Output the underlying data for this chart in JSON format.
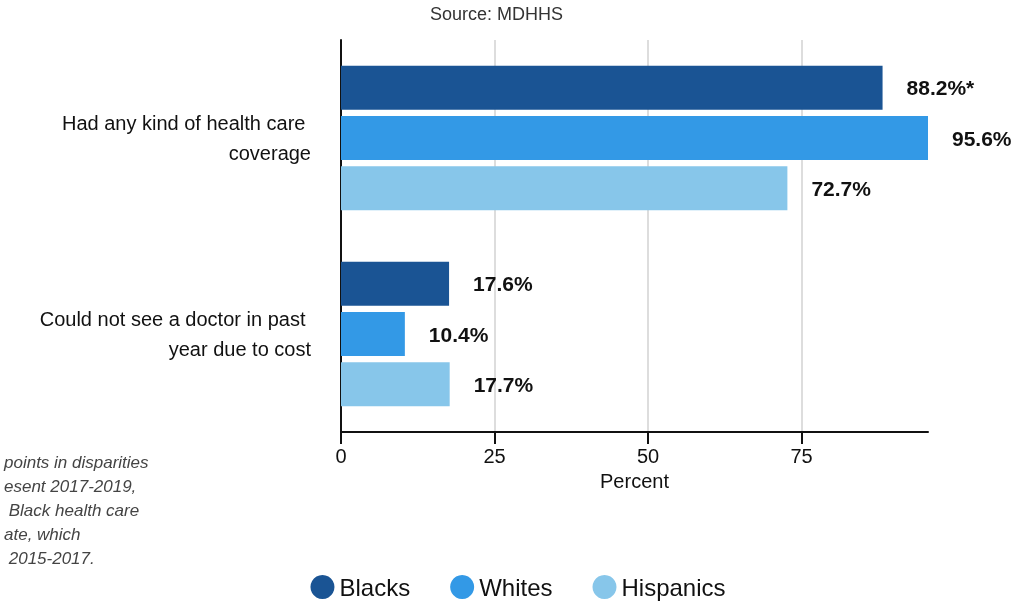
{
  "chart_data": {
    "type": "bar",
    "orientation": "horizontal",
    "subtitle": "Source: MDHHS",
    "xlabel": "Percent",
    "categories": [
      "Had any kind of health care coverage",
      "Could not see a doctor in past year due to cost"
    ],
    "series": [
      {
        "name": "Blacks",
        "color": "#1a5494",
        "values": [
          88.2,
          17.6
        ],
        "value_labels": [
          "88.2%*",
          "17.6%"
        ]
      },
      {
        "name": "Whites",
        "color": "#3399e6",
        "values": [
          95.6,
          10.4
        ],
        "value_labels": [
          "95.6%",
          "10.4%"
        ]
      },
      {
        "name": "Hispanics",
        "color": "#87c6ea",
        "values": [
          72.7,
          17.7
        ],
        "value_labels": [
          "72.7%",
          "17.7%"
        ]
      }
    ],
    "xlim": [
      0,
      95.6
    ],
    "xticks": [
      0,
      25,
      50,
      75
    ],
    "grid": "x",
    "legend": "bottom",
    "marker": "circle",
    "annotations": [
      "points in disparities\nesent 2017-2019,\n Black health care\nate, which\n 2015-2017."
    ]
  }
}
